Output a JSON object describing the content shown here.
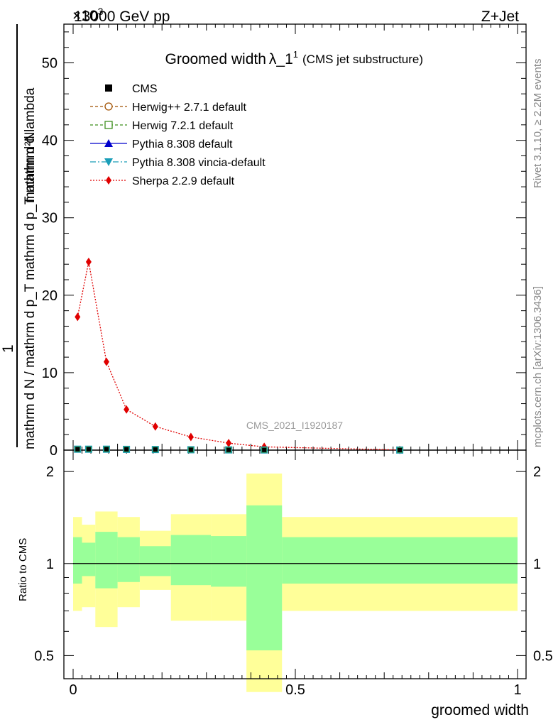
{
  "header": {
    "energy": "13000 GeV pp",
    "process": "Z+Jet",
    "exponent": "×10",
    "exponent_power": "3"
  },
  "side": {
    "rivet": "Rivet 3.1.10, ≥ 2.2M events",
    "mcplots": "mcplots.cern.ch [arXiv:1306.3436]"
  },
  "watermark": "CMS_2021_I1920187",
  "colors": {
    "cms": "#000000",
    "herwigpp": "#a05000",
    "herwig7": "#3f8f1f",
    "pythia": "#0000cc",
    "vincia": "#1a9eb8",
    "sherpa": "#e00000",
    "band_inner": "#99ff99",
    "band_outer": "#ffff99"
  },
  "chart_data": [
    {
      "type": "line",
      "title": "Groomed width",
      "title_symbol": "λ_1",
      "title_sup": "1",
      "title_sub": "(CMS jet substructure)",
      "ylabel_top": "1",
      "ylabel_num": "mathrm d²N",
      "ylabel_den": "mathrm d N / mathrm d p_T mathrm d p_T mathrm d lambda",
      "xlim": [
        0,
        1
      ],
      "ylim": [
        0,
        55
      ],
      "y_unit": "×10³",
      "yticks": [
        0,
        10,
        20,
        30,
        40,
        50
      ],
      "legend": [
        {
          "label": "CMS",
          "key": "cms"
        },
        {
          "label": "Herwig++ 2.7.1 default",
          "key": "herwigpp"
        },
        {
          "label": "Herwig 7.2.1 default",
          "key": "herwig7"
        },
        {
          "label": "Pythia 8.308 default",
          "key": "pythia"
        },
        {
          "label": "Pythia 8.308 vincia-default",
          "key": "vincia"
        },
        {
          "label": "Sherpa 2.2.9 default",
          "key": "sherpa"
        }
      ],
      "series": [
        {
          "name": "CMS",
          "x": [
            0.01,
            0.035,
            0.075,
            0.12,
            0.185,
            0.265,
            0.35,
            0.43,
            0.735
          ],
          "values": [
            0.12,
            0.12,
            0.12,
            0.1,
            0.08,
            0.05,
            0.03,
            0.02,
            0.01
          ]
        },
        {
          "name": "Sherpa 2.2.9 default",
          "x": [
            0.01,
            0.035,
            0.075,
            0.12,
            0.185,
            0.265,
            0.35,
            0.43,
            0.735
          ],
          "values": [
            17.2,
            24.3,
            11.4,
            5.25,
            3.05,
            1.7,
            0.9,
            0.42,
            0.02
          ]
        }
      ]
    },
    {
      "type": "area",
      "ylabel": "Ratio to CMS",
      "xlabel": "groomed width",
      "xlim": [
        0,
        1
      ],
      "ylim": [
        0.42,
        2.35
      ],
      "xticks": [
        0,
        0.5,
        1
      ],
      "xtick_labels": [
        "0",
        "0.5",
        "1"
      ],
      "yticks": [
        0.5,
        1,
        2
      ],
      "ytick_labels": [
        "0.5",
        "1",
        "2"
      ],
      "bins": [
        {
          "x0": 0.0,
          "x1": 0.02,
          "inner": [
            0.86,
            1.22
          ],
          "outer": [
            0.7,
            1.42
          ]
        },
        {
          "x0": 0.02,
          "x1": 0.05,
          "inner": [
            0.91,
            1.17
          ],
          "outer": [
            0.72,
            1.34
          ]
        },
        {
          "x0": 0.05,
          "x1": 0.1,
          "inner": [
            0.83,
            1.27
          ],
          "outer": [
            0.62,
            1.48
          ]
        },
        {
          "x0": 0.1,
          "x1": 0.15,
          "inner": [
            0.87,
            1.22
          ],
          "outer": [
            0.72,
            1.42
          ]
        },
        {
          "x0": 0.15,
          "x1": 0.22,
          "inner": [
            0.91,
            1.14
          ],
          "outer": [
            0.82,
            1.28
          ]
        },
        {
          "x0": 0.22,
          "x1": 0.31,
          "inner": [
            0.85,
            1.24
          ],
          "outer": [
            0.65,
            1.45
          ]
        },
        {
          "x0": 0.31,
          "x1": 0.39,
          "inner": [
            0.84,
            1.23
          ],
          "outer": [
            0.65,
            1.45
          ]
        },
        {
          "x0": 0.39,
          "x1": 0.47,
          "inner": [
            0.52,
            1.55
          ],
          "outer": [
            0.38,
            1.97
          ]
        },
        {
          "x0": 0.47,
          "x1": 1.0,
          "inner": [
            0.86,
            1.22
          ],
          "outer": [
            0.7,
            1.42
          ]
        }
      ]
    }
  ]
}
